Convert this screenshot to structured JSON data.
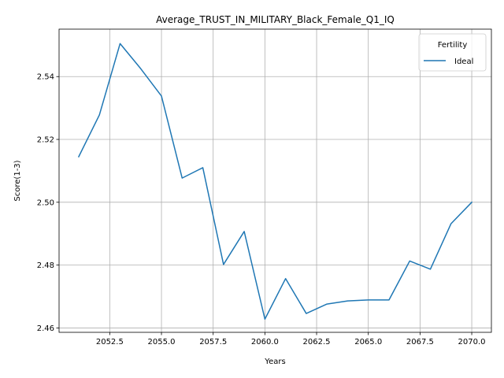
{
  "chart_data": {
    "type": "line",
    "title": "Average_TRUST_IN_MILITARY_Black_Female_Q1_IQ",
    "xlabel": "Years",
    "ylabel": "Score(1-3)",
    "x": [
      2051,
      2052,
      2053,
      2054,
      2055,
      2056,
      2057,
      2058,
      2059,
      2060,
      2061,
      2062,
      2063,
      2064,
      2065,
      2066,
      2067,
      2068,
      2069,
      2070
    ],
    "series": [
      {
        "name": "Ideal",
        "color": "#1f77b4",
        "values": [
          2.5145,
          2.5278,
          2.5505,
          2.5425,
          2.5338,
          2.5077,
          2.511,
          2.4802,
          2.4907,
          2.4628,
          2.4757,
          2.4646,
          2.4676,
          2.4686,
          2.4689,
          2.4689,
          2.4813,
          2.4787,
          2.4932,
          2.5
        ]
      }
    ],
    "xlim": [
      2050.05,
      2070.95
    ],
    "ylim": [
      2.4586,
      2.5551
    ],
    "xticks": [
      2052.5,
      2055.0,
      2057.5,
      2060.0,
      2062.5,
      2065.0,
      2067.5,
      2070.0
    ],
    "xtick_labels": [
      "2052.5",
      "2055.0",
      "2057.5",
      "2060.0",
      "2062.5",
      "2065.0",
      "2067.5",
      "2070.0"
    ],
    "yticks": [
      2.46,
      2.48,
      2.5,
      2.52,
      2.54
    ],
    "ytick_labels": [
      "2.46",
      "2.48",
      "2.50",
      "2.52",
      "2.54"
    ],
    "grid": true,
    "legend": {
      "title": "Fertility",
      "placement": "top-right"
    }
  }
}
